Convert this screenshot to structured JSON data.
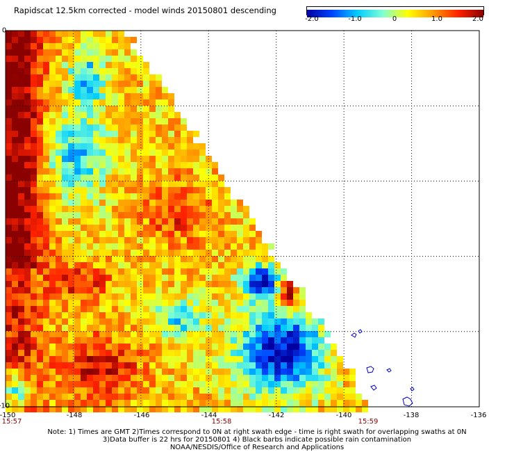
{
  "title": "Rapidscat 12.5km corrected - model winds 20150801 descending",
  "colorbar": {
    "ticks": [
      "-2.0",
      "-1.0",
      "0",
      "1.0",
      "2.0"
    ],
    "range": [
      -2.0,
      2.0
    ],
    "colors": [
      "#0000a0",
      "#0044ff",
      "#00ccff",
      "#7fffd4",
      "#ffff00",
      "#ff9900",
      "#ff2200",
      "#8b0000"
    ]
  },
  "map": {
    "lon_range": [
      -150,
      -136
    ],
    "lat_range": [
      -10,
      0
    ],
    "x_ticks": [
      "-150",
      "-148",
      "-146",
      "-144",
      "-142",
      "-140",
      "-138",
      "-136"
    ],
    "y_ticks": [
      "0",
      "-2",
      "-4",
      "-6",
      "-8",
      "-10"
    ],
    "shown_y_labels": {
      "0": "0",
      "-10": "-10"
    },
    "times": [
      "15:57",
      "15:58",
      "15:59"
    ]
  },
  "notes": [
    "Note: 1) Times are GMT 2)Times correspond to 0N at right swath edge - time is right swath for overlapping swaths at 0N",
    "3)Data buffer is 22 hrs for 20150801 4) Black barbs indicate possible rain contamination",
    "NOAA/NESDIS/Office of Research and Applications"
  ]
}
